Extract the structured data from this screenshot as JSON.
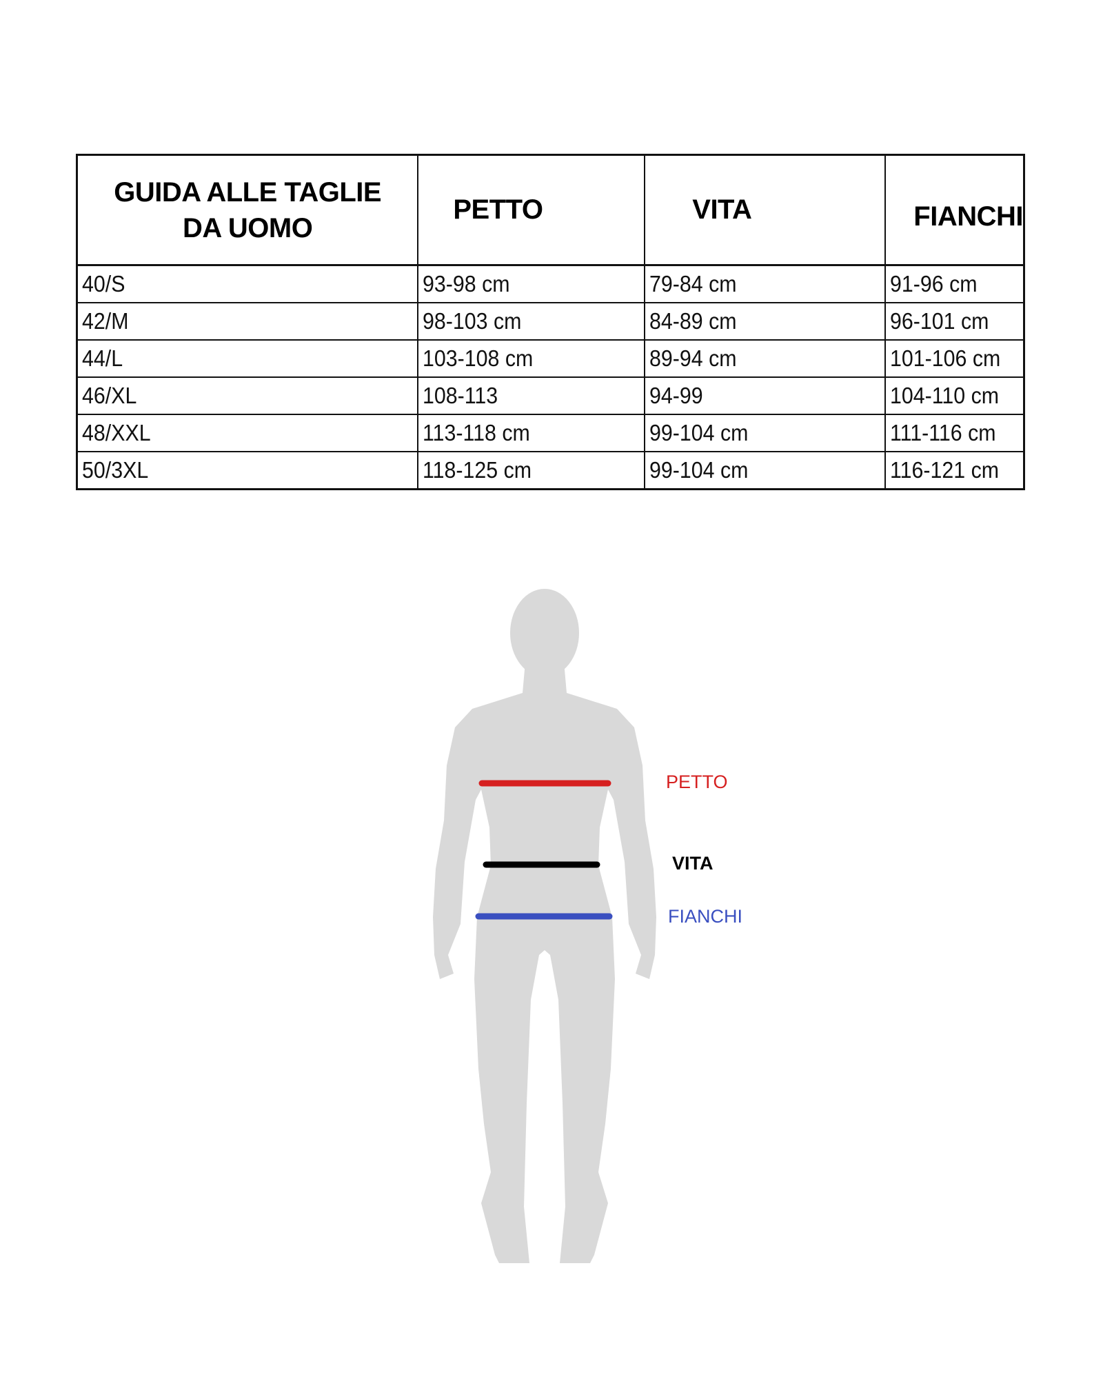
{
  "table": {
    "title_line1": "GUIDA ALLE TAGLIE",
    "title_line2": "DA UOMO",
    "headers": [
      "PETTO",
      "VITA",
      "FIANCHI"
    ],
    "rows": [
      {
        "size": "40/S",
        "petto": "93-98 cm",
        "vita": "79-84 cm",
        "fianchi": "91-96 cm"
      },
      {
        "size": "42/M",
        "petto": "98-103 cm",
        "vita": "84-89 cm",
        "fianchi": "96-101 cm"
      },
      {
        "size": "44/L",
        "petto": "103-108 cm",
        "vita": "89-94 cm",
        "fianchi": "101-106 cm"
      },
      {
        "size": "46/XL",
        "petto": "108-113",
        "vita": "94-99",
        "fianchi": "104-110 cm"
      },
      {
        "size": "48/XXL",
        "petto": "113-118 cm",
        "vita": "99-104 cm",
        "fianchi": "111-116 cm"
      },
      {
        "size": "50/3XL",
        "petto": "118-125 cm",
        "vita": "99-104 cm",
        "fianchi": "116-121 cm"
      }
    ]
  },
  "figure": {
    "silhouette_color": "#d9d9d9",
    "measurements": [
      {
        "label": "PETTO",
        "color": "#d62020"
      },
      {
        "label": "VITA",
        "color": "#000000"
      },
      {
        "label": "FIANCHI",
        "color": "#3a4fc0"
      }
    ]
  }
}
